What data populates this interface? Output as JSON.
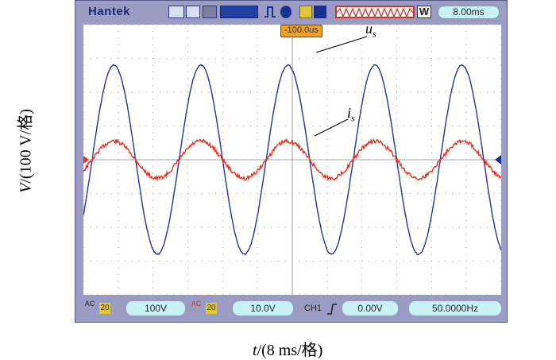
{
  "toolbar": {
    "brand": "Hantek",
    "timebase": "8.00ms",
    "trigger_position": "-100.0us",
    "w_label": "W"
  },
  "bottom_bar": {
    "ch1_coupling": "AC",
    "ch1_bw": "20",
    "ch1_scale": "100V",
    "ch2_coupling": "AC",
    "ch2_bw": "20",
    "ch2_scale": "10.0V",
    "trigger_source": "CH1",
    "trigger_level": "0.00V",
    "frequency": "50.0000Hz"
  },
  "annotations": {
    "us_label": "u",
    "us_sub": "s",
    "is_label": "i",
    "is_sub": "s",
    "ylabel_var": "V",
    "ylabel_unit": "/(100 V/格)",
    "xlabel_var": "t",
    "xlabel_unit": "/(8 ms/格)"
  },
  "colors": {
    "us_trace": "#24349a",
    "is_trace": "#e8321e",
    "screen_bg": "#ffffff",
    "frame": "#9a9cc4"
  },
  "chart_data": {
    "type": "line",
    "series": [
      {
        "name": "u_s",
        "frequency_hz": 50,
        "amplitude_div": 2.8,
        "offset_div": 0
      },
      {
        "name": "i_s",
        "frequency_hz": 50,
        "amplitude_div": 0.55,
        "offset_div": 0,
        "phase": "in phase with u_s"
      }
    ],
    "xlabel": "t/(8 ms/格)",
    "ylabel": "V/(100 V/格)",
    "x_divisions": 12,
    "y_divisions": 8,
    "grid": true
  }
}
